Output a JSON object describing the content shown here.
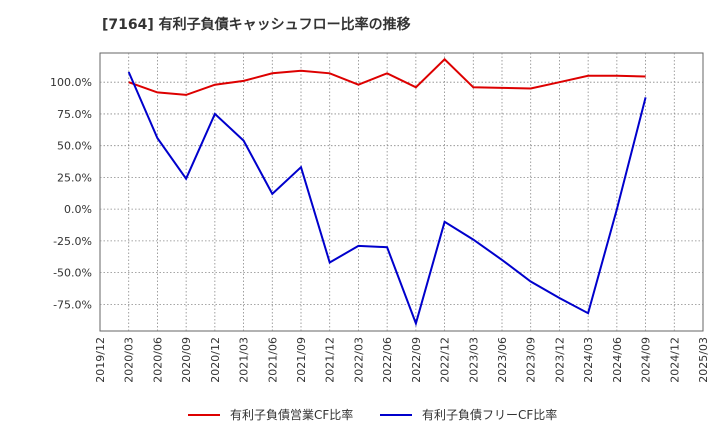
{
  "chart_data": {
    "type": "line",
    "title": "[7164]  有利子負債キャッシュフロー比率の推移",
    "xlabel": "",
    "ylabel": "",
    "x_ticks": [
      "2019/12",
      "2020/03",
      "2020/06",
      "2020/09",
      "2020/12",
      "2021/03",
      "2021/06",
      "2021/09",
      "2021/12",
      "2022/03",
      "2022/06",
      "2022/09",
      "2022/12",
      "2023/03",
      "2023/06",
      "2023/09",
      "2023/12",
      "2024/03",
      "2024/06",
      "2024/09",
      "2024/12",
      "2025/03"
    ],
    "y_ticks": [
      100,
      75,
      50,
      25,
      0,
      -25,
      -50,
      -75
    ],
    "y_tick_labels": [
      "100.0%",
      "75.0%",
      "50.0%",
      "25.0%",
      "0.0%",
      "-25.0%",
      "-50.0%",
      "-75.0%"
    ],
    "ylim": [
      -96,
      123
    ],
    "grid": true,
    "legend_position": "bottom",
    "series": [
      {
        "name": "有利子負債営業CF比率",
        "color": "#dd0000",
        "x": [
          "2020/03",
          "2020/06",
          "2020/09",
          "2020/12",
          "2021/03",
          "2021/06",
          "2021/09",
          "2021/12",
          "2022/03",
          "2022/06",
          "2022/09",
          "2022/12",
          "2023/03",
          "2023/06",
          "2023/09",
          "2023/12",
          "2024/03",
          "2024/06",
          "2024/09"
        ],
        "values": [
          100,
          92,
          90,
          98,
          101,
          107,
          109,
          107,
          98,
          107,
          96,
          118,
          96,
          95.5,
          95,
          100,
          105,
          105,
          104.5
        ]
      },
      {
        "name": "有利子負債フリーCF比率",
        "color": "#0000cc",
        "x": [
          "2020/03",
          "2020/06",
          "2020/09",
          "2020/12",
          "2021/03",
          "2021/06",
          "2021/09",
          "2021/12",
          "2022/03",
          "2022/06",
          "2022/09",
          "2022/12",
          "2023/03",
          "2023/06",
          "2023/09",
          "2023/12",
          "2024/03",
          "2024/06",
          "2024/09"
        ],
        "values": [
          108,
          56,
          24,
          75,
          54,
          12,
          33,
          -42,
          -29,
          -30,
          -90,
          -10,
          -24,
          -40,
          -57,
          -70,
          -82,
          0,
          88
        ]
      }
    ]
  }
}
